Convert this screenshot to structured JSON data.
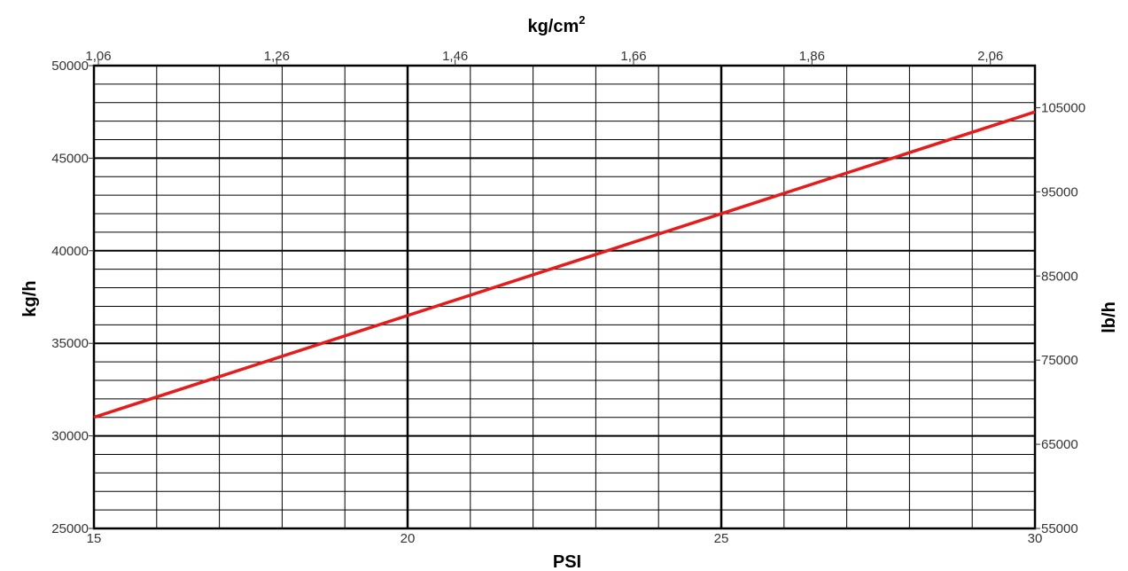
{
  "chart_data": {
    "type": "line",
    "xlabel": "PSI",
    "x_top_label": "kg/cm",
    "x_top_label_sup": "2",
    "ylabel": "kg/h",
    "y_right_label": "lb/h",
    "xlim": [
      15,
      30
    ],
    "ylim": [
      25000,
      50000
    ],
    "x_top_lim": [
      1.055,
      2.11
    ],
    "y_right_lim": [
      55000,
      110000
    ],
    "x_ticks": [
      "15",
      "20",
      "25",
      "30"
    ],
    "x_tick_values": [
      15,
      20,
      25,
      30
    ],
    "x_top_ticks": [
      "1,06",
      "1,26",
      "1,46",
      "1,66",
      "1,86",
      "2,06"
    ],
    "x_top_tick_values": [
      1.06,
      1.26,
      1.46,
      1.66,
      1.86,
      2.06
    ],
    "y_ticks": [
      "25000",
      "30000",
      "35000",
      "40000",
      "45000",
      "50000"
    ],
    "y_tick_values": [
      25000,
      30000,
      35000,
      40000,
      45000,
      50000
    ],
    "y_right_ticks": [
      "55000",
      "65000",
      "75000",
      "85000",
      "95000",
      "105000"
    ],
    "y_right_tick_values": [
      55000,
      65000,
      75000,
      85000,
      95000,
      105000
    ],
    "x_minor_step": 1,
    "x_major_step": 5,
    "y_minor_step": 1000,
    "y_major_step": 5000,
    "grid": true,
    "series": [
      {
        "x": [
          15,
          30
        ],
        "values": [
          31000,
          47500
        ]
      }
    ],
    "colors": {
      "line": "#e41c1c",
      "grid": "#000000",
      "text": "#333333"
    }
  }
}
